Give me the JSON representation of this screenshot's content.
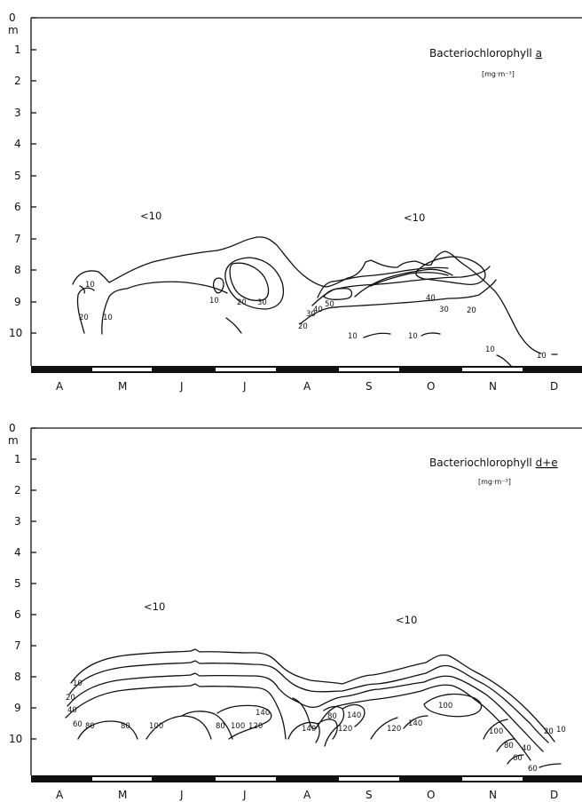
{
  "chart_data": [
    {
      "type": "contour",
      "title": "Bacteriochlorophyll a",
      "title_base": "Bacteriochlorophyll ",
      "title_underlined": "a",
      "unit": "[mg·m⁻³]",
      "y_axis_unit": "m",
      "y_ticks": [
        "0",
        "1",
        "2",
        "3",
        "4",
        "5",
        "6",
        "7",
        "8",
        "9",
        "10"
      ],
      "ylim": [
        0,
        11
      ],
      "y_inverted": true,
      "months": [
        "A",
        "M",
        "J",
        "J",
        "A",
        "S",
        "O",
        "N",
        "D"
      ],
      "labels_low": [
        "<10",
        "<10"
      ],
      "contour_levels": [
        10,
        20,
        30,
        40,
        50
      ],
      "contour_labels": [
        "10",
        "20",
        "10",
        "10",
        "20",
        "30",
        "40",
        "50",
        "30",
        "20",
        "10",
        "10",
        "40",
        "30",
        "20",
        "10",
        "10"
      ]
    },
    {
      "type": "contour",
      "title": "Bacteriochlorophyll d+e",
      "title_base": "Bacteriochlorophyll ",
      "title_underlined": "d+e",
      "unit": "[mg·m⁻³]",
      "y_axis_unit": "m",
      "y_ticks": [
        "0",
        "1",
        "2",
        "3",
        "4",
        "5",
        "6",
        "7",
        "8",
        "9",
        "10"
      ],
      "ylim": [
        0,
        11
      ],
      "y_inverted": true,
      "months": [
        "A",
        "M",
        "J",
        "J",
        "A",
        "S",
        "O",
        "N",
        "D"
      ],
      "labels_low": [
        "<10",
        "<10"
      ],
      "contour_levels": [
        10,
        20,
        40,
        60,
        80,
        100,
        120,
        140
      ],
      "contour_labels": [
        "10",
        "20",
        "40",
        "60",
        "80",
        "80",
        "100",
        "80",
        "100",
        "120",
        "140",
        "140",
        "80",
        "140",
        "120",
        "120",
        "140",
        "100",
        "100",
        "80",
        "60",
        "40",
        "20",
        "10",
        "60"
      ]
    }
  ]
}
